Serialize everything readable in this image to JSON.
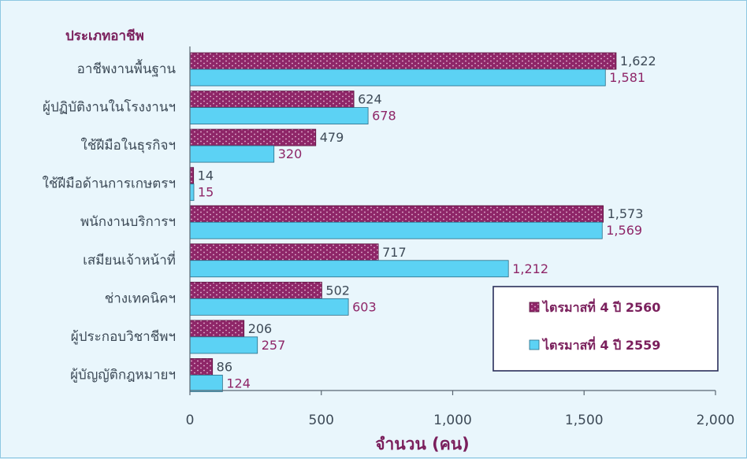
{
  "chart_data": {
    "type": "bar",
    "orientation": "horizontal",
    "ylabel": "ประเภทอาชีพ",
    "xlabel": "จำนวน (คน)",
    "xlim": [
      0,
      2000
    ],
    "xticks": [
      "0",
      "500",
      "1,000",
      "1,500",
      "2,000"
    ],
    "categories": [
      "อาชีพงานพื้นฐาน",
      "ผู้ปฏิบัติงานในโรงงานฯ",
      "ใช้ฝีมือในธุรกิจฯ",
      "ใช้ฝีมือด้านการเกษตรฯ",
      "พนักงานบริการฯ",
      "เสมียนเจ้าหน้าที่",
      "ช่างเทคนิคฯ",
      "ผู้ประกอบวิชาชีพฯ",
      "ผู้บัญญัติกฎหมายฯ"
    ],
    "series": [
      {
        "name": "ไตรมาสที่ 4 ปี 2560",
        "color": "#8e2668",
        "pattern": "dotted",
        "values": [
          1622,
          624,
          479,
          14,
          1573,
          717,
          502,
          206,
          86
        ],
        "labels": [
          "1,622",
          "624",
          "479",
          "14",
          "1,573",
          "717",
          "502",
          "206",
          "86"
        ]
      },
      {
        "name": "ไตรมาสที่ 4 ปี 2559",
        "color": "#5cd2f4",
        "pattern": "solid",
        "values": [
          1581,
          678,
          320,
          15,
          1569,
          1212,
          603,
          257,
          124
        ],
        "labels": [
          "1,581",
          "678",
          "320",
          "15",
          "1,569",
          "1,212",
          "603",
          "257",
          "124"
        ]
      }
    ],
    "legend_position": "bottom-right",
    "grid": false
  }
}
